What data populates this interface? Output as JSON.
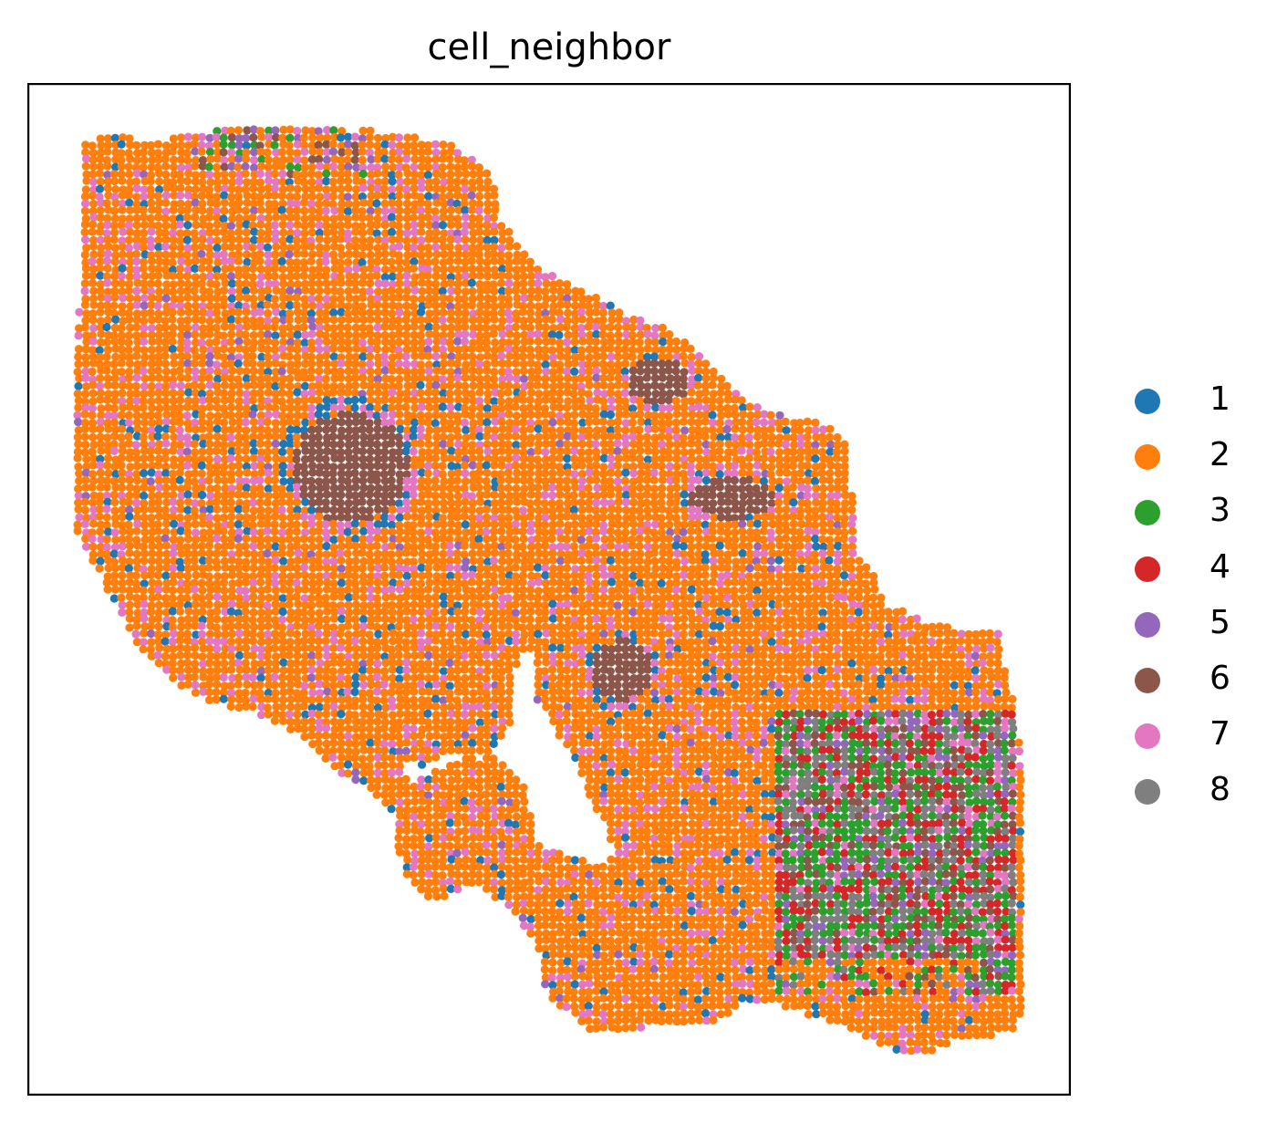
{
  "chart_data": {
    "type": "scatter",
    "title": "cell_neighbor",
    "xlabel": "",
    "ylabel": "",
    "axis_ticks": false,
    "grid": false,
    "legend_placement": "right",
    "legend": [
      {
        "label": "1",
        "color": "#1f77b4"
      },
      {
        "label": "2",
        "color": "#ff7f0e"
      },
      {
        "label": "3",
        "color": "#2ca02c"
      },
      {
        "label": "4",
        "color": "#d62728"
      },
      {
        "label": "5",
        "color": "#9467bd"
      },
      {
        "label": "6",
        "color": "#8c564b"
      },
      {
        "label": "7",
        "color": "#e377c2"
      },
      {
        "label": "8",
        "color": "#7f7f7f"
      }
    ],
    "regions": [
      {
        "category": "6",
        "description": "large cluster center-left",
        "cx": 0.31,
        "cy": 0.38,
        "rx": 0.055,
        "ry": 0.055
      },
      {
        "category": "6",
        "description": "cluster near top-right of upper lobe",
        "cx": 0.605,
        "cy": 0.295,
        "rx": 0.03,
        "ry": 0.022
      },
      {
        "category": "6",
        "description": "cluster mid-right",
        "cx": 0.675,
        "cy": 0.41,
        "rx": 0.04,
        "ry": 0.02
      },
      {
        "category": "6",
        "description": "cluster center",
        "cx": 0.57,
        "cy": 0.58,
        "rx": 0.03,
        "ry": 0.03
      }
    ]
  }
}
